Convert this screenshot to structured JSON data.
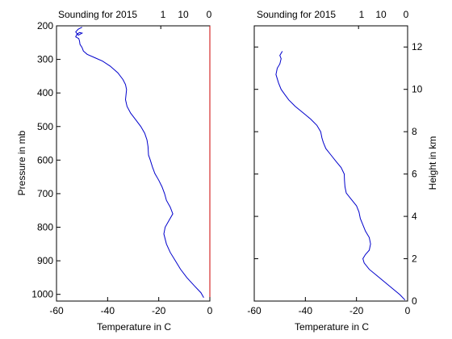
{
  "chart_data": [
    {
      "type": "line",
      "title": "Sounding for 2015",
      "top_labels": [
        "1",
        "10",
        "0"
      ],
      "xlabel": "Temperature in C",
      "ylabel": "Pressure in mb",
      "xlim": [
        -60,
        0
      ],
      "ylim": [
        200,
        1020
      ],
      "y_reversed": true,
      "xticks": [
        -60,
        -40,
        -20,
        0
      ],
      "yticks": [
        200,
        300,
        400,
        500,
        600,
        700,
        800,
        900,
        1000
      ],
      "grid": false,
      "right_axis_color": "#cc0000",
      "series": [
        {
          "color": "#0000cc",
          "x": [
            -2.4,
            -3.5,
            -6,
            -9,
            -11.5,
            -13.5,
            -15.5,
            -17,
            -18,
            -17.5,
            -16,
            -14.5,
            -15.5,
            -17,
            -17.7,
            -18.7,
            -20,
            -21.5,
            -22.5,
            -23.3,
            -24,
            -24.2,
            -24.6,
            -25.5,
            -27,
            -29,
            -31,
            -32.4,
            -33,
            -32.6,
            -33,
            -34,
            -36,
            -39,
            -42,
            -45,
            -48,
            -49.5,
            -50,
            -50.8,
            -51,
            -51.3,
            -52.5,
            -52,
            -51,
            -50,
            -51.5,
            -52.5,
            -51.5,
            -50
          ],
          "y": [
            1010,
            995,
            975,
            950,
            925,
            900,
            875,
            850,
            820,
            800,
            780,
            760,
            740,
            720,
            700,
            680,
            660,
            640,
            620,
            600,
            585,
            560,
            540,
            520,
            500,
            480,
            460,
            440,
            420,
            390,
            375,
            360,
            340,
            320,
            305,
            295,
            285,
            275,
            265,
            255,
            245,
            238,
            233,
            225,
            220,
            222,
            228,
            218,
            210,
            204
          ]
        }
      ]
    },
    {
      "type": "line",
      "title": "Sounding for 2015",
      "top_labels": [
        "1",
        "10",
        "0"
      ],
      "xlabel": "Temperature in C",
      "ylabel": "Height in km",
      "xlim": [
        -60,
        0
      ],
      "ylim": [
        0,
        13
      ],
      "xticks": [
        -60,
        -40,
        -20,
        0
      ],
      "yticks": [
        0,
        2,
        4,
        6,
        8,
        10,
        12
      ],
      "grid": false,
      "series": [
        {
          "color": "#0000cc",
          "x": [
            -1,
            -3,
            -6,
            -9,
            -12,
            -15,
            -17,
            -17.5,
            -16.5,
            -15,
            -14.5,
            -15,
            -16.5,
            -17.5,
            -18.5,
            -19,
            -20,
            -22,
            -24,
            -24.5,
            -24.7,
            -24.8,
            -26,
            -28,
            -30,
            -32,
            -33,
            -33.5,
            -34,
            -35.5,
            -38,
            -41,
            -44,
            -46.5,
            -48,
            -49.5,
            -50.5,
            -51.5,
            -51,
            -50,
            -49.5,
            -50,
            -49
          ],
          "y": [
            0.05,
            0.3,
            0.6,
            0.9,
            1.2,
            1.5,
            1.8,
            2.0,
            2.2,
            2.4,
            2.7,
            3.0,
            3.3,
            3.6,
            3.9,
            4.2,
            4.5,
            4.8,
            5.1,
            5.4,
            5.7,
            6.0,
            6.3,
            6.6,
            6.9,
            7.2,
            7.5,
            7.7,
            8.0,
            8.3,
            8.6,
            8.9,
            9.2,
            9.5,
            9.75,
            10.0,
            10.3,
            10.7,
            11.0,
            11.2,
            11.45,
            11.6,
            11.8
          ]
        }
      ]
    }
  ]
}
